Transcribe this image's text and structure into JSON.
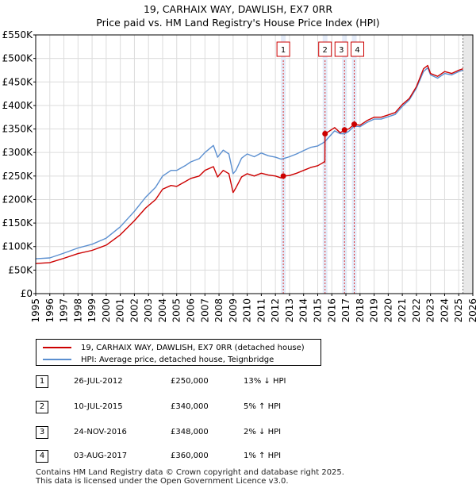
{
  "title": {
    "line1": "19, CARHAIX WAY, DAWLISH, EX7 0RR",
    "line2": "Price paid vs. HM Land Registry's House Price Index (HPI)"
  },
  "chart_data": {
    "type": "line",
    "title": "19, CARHAIX WAY, DAWLISH, EX7 0RR — Price paid vs. HM Land Registry's House Price Index (HPI)",
    "xlabel": "",
    "ylabel": "",
    "xlim": [
      1995,
      2026
    ],
    "ylim": [
      0,
      550000
    ],
    "y_ticks": [
      0,
      50000,
      100000,
      150000,
      200000,
      250000,
      300000,
      350000,
      400000,
      450000,
      500000,
      550000
    ],
    "y_tick_labels": [
      "£0",
      "£50K",
      "£100K",
      "£150K",
      "£200K",
      "£250K",
      "£300K",
      "£350K",
      "£400K",
      "£450K",
      "£500K",
      "£550K"
    ],
    "x_ticks": [
      1995,
      1996,
      1997,
      1998,
      1999,
      2000,
      2001,
      2002,
      2003,
      2004,
      2005,
      2006,
      2007,
      2008,
      2009,
      2010,
      2011,
      2012,
      2013,
      2014,
      2015,
      2016,
      2017,
      2018,
      2019,
      2020,
      2021,
      2022,
      2023,
      2024,
      2025,
      2026
    ],
    "x_tick_labels": [
      "1995",
      "1996",
      "1997",
      "1998",
      "1999",
      "2000",
      "2001",
      "2002",
      "2003",
      "2004",
      "2005",
      "2006",
      "2007",
      "2008",
      "2009",
      "2010",
      "2011",
      "2012",
      "2013",
      "2014",
      "2015",
      "2016",
      "2017",
      "2018",
      "2019",
      "2020",
      "2021",
      "2022",
      "2023",
      "2024",
      "2025",
      "2026"
    ],
    "grid": true,
    "series": [
      {
        "name": "19, CARHAIX WAY, DAWLISH, EX7 0RR (detached house)",
        "color": "#cc0000",
        "x": [
          1995.0,
          1996.0,
          1997.0,
          1998.0,
          1999.0,
          2000.0,
          2001.0,
          2002.0,
          2002.8,
          2003.5,
          2004.0,
          2004.6,
          2005.0,
          2005.6,
          2006.0,
          2006.6,
          2007.0,
          2007.6,
          2007.9,
          2008.3,
          2008.7,
          2009.0,
          2009.2,
          2009.6,
          2010.0,
          2010.5,
          2011.0,
          2011.5,
          2012.0,
          2012.4,
          2012.56,
          2013.0,
          2013.5,
          2014.0,
          2014.5,
          2015.0,
          2015.3,
          2015.51,
          2015.52,
          2015.8,
          2016.2,
          2016.6,
          2016.9,
          2017.2,
          2017.59,
          2018.0,
          2018.5,
          2019.0,
          2019.5,
          2020.0,
          2020.5,
          2021.0,
          2021.5,
          2022.0,
          2022.5,
          2022.8,
          2023.0,
          2023.5,
          2024.0,
          2024.5,
          2025.0,
          2025.3
        ],
        "values": [
          64000,
          66000,
          75000,
          85000,
          92000,
          103000,
          125000,
          155000,
          182000,
          200000,
          222000,
          230000,
          228000,
          238000,
          245000,
          250000,
          262000,
          270000,
          248000,
          262000,
          255000,
          215000,
          225000,
          248000,
          255000,
          250000,
          256000,
          252000,
          250000,
          246000,
          250000,
          251000,
          256000,
          262000,
          268000,
          272000,
          277000,
          281000,
          340000,
          345000,
          353000,
          342000,
          348000,
          350000,
          360000,
          358000,
          368000,
          375000,
          375000,
          380000,
          385000,
          402000,
          415000,
          440000,
          478000,
          485000,
          468000,
          462000,
          472000,
          468000,
          475000,
          478000
        ]
      },
      {
        "name": "HPI: Average price, detached house, Teignbridge",
        "color": "#5b8fd0",
        "x": [
          1995.0,
          1996.0,
          1997.0,
          1998.0,
          1999.0,
          2000.0,
          2001.0,
          2002.0,
          2002.8,
          2003.5,
          2004.0,
          2004.6,
          2005.0,
          2005.6,
          2006.0,
          2006.6,
          2007.0,
          2007.6,
          2007.9,
          2008.3,
          2008.7,
          2009.0,
          2009.2,
          2009.6,
          2010.0,
          2010.5,
          2011.0,
          2011.5,
          2012.0,
          2012.4,
          2012.56,
          2013.0,
          2013.5,
          2014.0,
          2014.5,
          2015.0,
          2015.3,
          2015.51,
          2015.8,
          2016.2,
          2016.6,
          2016.9,
          2017.2,
          2017.59,
          2018.0,
          2018.5,
          2019.0,
          2019.5,
          2020.0,
          2020.5,
          2021.0,
          2021.5,
          2022.0,
          2022.5,
          2022.8,
          2023.0,
          2023.5,
          2024.0,
          2024.5,
          2025.0,
          2025.3
        ],
        "values": [
          74000,
          76000,
          86000,
          97000,
          105000,
          118000,
          142000,
          175000,
          205000,
          226000,
          250000,
          262000,
          262000,
          272000,
          280000,
          287000,
          300000,
          315000,
          290000,
          305000,
          297000,
          255000,
          262000,
          288000,
          297000,
          291000,
          299000,
          293000,
          290000,
          286000,
          287000,
          291000,
          297000,
          304000,
          311000,
          314000,
          319000,
          323000,
          333000,
          346000,
          340000,
          340000,
          345000,
          356000,
          355000,
          364000,
          371000,
          371000,
          376000,
          381000,
          398000,
          412000,
          437000,
          472000,
          480000,
          465000,
          458000,
          468000,
          465000,
          472000,
          475000
        ]
      }
    ],
    "sales": [
      {
        "label": "1",
        "x": 2012.56,
        "value": 250000
      },
      {
        "label": "2",
        "x": 2015.52,
        "value": 340000
      },
      {
        "label": "3",
        "x": 2016.9,
        "value": 348000
      },
      {
        "label": "4",
        "x": 2017.59,
        "value": 360000
      }
    ],
    "latest_data_x": 2025.3,
    "legend_position": "below"
  },
  "legend": {
    "property": "19, CARHAIX WAY, DAWLISH, EX7 0RR (detached house)",
    "hpi": "HPI: Average price, detached house, Teignbridge",
    "property_color": "#cc0000",
    "hpi_color": "#5b8fd0"
  },
  "sales_table": [
    {
      "num": "1",
      "date": "26-JUL-2012",
      "price": "£250,000",
      "relation": "13% ↓ HPI"
    },
    {
      "num": "2",
      "date": "10-JUL-2015",
      "price": "£340,000",
      "relation": "5% ↑ HPI"
    },
    {
      "num": "3",
      "date": "24-NOV-2016",
      "price": "£348,000",
      "relation": "2% ↓ HPI"
    },
    {
      "num": "4",
      "date": "03-AUG-2017",
      "price": "£360,000",
      "relation": "1% ↑ HPI"
    }
  ],
  "footer": {
    "line1": "Contains HM Land Registry data © Crown copyright and database right 2025.",
    "line2": "This data is licensed under the Open Government Licence v3.0."
  }
}
